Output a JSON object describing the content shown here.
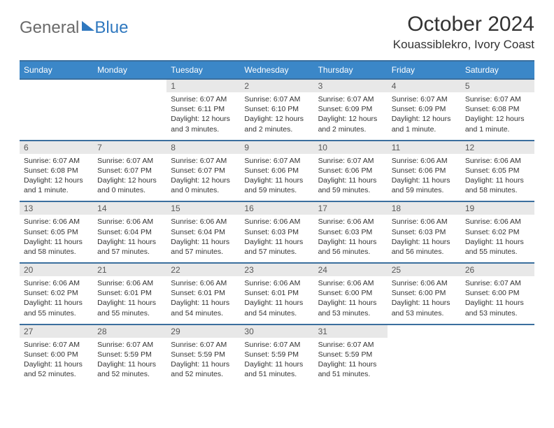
{
  "logo": {
    "general": "General",
    "blue": "Blue"
  },
  "title": "October 2024",
  "location": "Kouassiblekro, Ivory Coast",
  "colors": {
    "header_bg": "#3b87c8",
    "header_border": "#3b6f9e",
    "daynum_bg": "#e8e8e8",
    "text": "#333333",
    "logo_gray": "#6a6a6a",
    "logo_blue": "#2f78bf"
  },
  "dayNames": [
    "Sunday",
    "Monday",
    "Tuesday",
    "Wednesday",
    "Thursday",
    "Friday",
    "Saturday"
  ],
  "weeks": [
    [
      null,
      null,
      {
        "n": "1",
        "sr": "6:07 AM",
        "ss": "6:11 PM",
        "dl": "12 hours and 3 minutes."
      },
      {
        "n": "2",
        "sr": "6:07 AM",
        "ss": "6:10 PM",
        "dl": "12 hours and 2 minutes."
      },
      {
        "n": "3",
        "sr": "6:07 AM",
        "ss": "6:09 PM",
        "dl": "12 hours and 2 minutes."
      },
      {
        "n": "4",
        "sr": "6:07 AM",
        "ss": "6:09 PM",
        "dl": "12 hours and 1 minute."
      },
      {
        "n": "5",
        "sr": "6:07 AM",
        "ss": "6:08 PM",
        "dl": "12 hours and 1 minute."
      }
    ],
    [
      {
        "n": "6",
        "sr": "6:07 AM",
        "ss": "6:08 PM",
        "dl": "12 hours and 1 minute."
      },
      {
        "n": "7",
        "sr": "6:07 AM",
        "ss": "6:07 PM",
        "dl": "12 hours and 0 minutes."
      },
      {
        "n": "8",
        "sr": "6:07 AM",
        "ss": "6:07 PM",
        "dl": "12 hours and 0 minutes."
      },
      {
        "n": "9",
        "sr": "6:07 AM",
        "ss": "6:06 PM",
        "dl": "11 hours and 59 minutes."
      },
      {
        "n": "10",
        "sr": "6:07 AM",
        "ss": "6:06 PM",
        "dl": "11 hours and 59 minutes."
      },
      {
        "n": "11",
        "sr": "6:06 AM",
        "ss": "6:06 PM",
        "dl": "11 hours and 59 minutes."
      },
      {
        "n": "12",
        "sr": "6:06 AM",
        "ss": "6:05 PM",
        "dl": "11 hours and 58 minutes."
      }
    ],
    [
      {
        "n": "13",
        "sr": "6:06 AM",
        "ss": "6:05 PM",
        "dl": "11 hours and 58 minutes."
      },
      {
        "n": "14",
        "sr": "6:06 AM",
        "ss": "6:04 PM",
        "dl": "11 hours and 57 minutes."
      },
      {
        "n": "15",
        "sr": "6:06 AM",
        "ss": "6:04 PM",
        "dl": "11 hours and 57 minutes."
      },
      {
        "n": "16",
        "sr": "6:06 AM",
        "ss": "6:03 PM",
        "dl": "11 hours and 57 minutes."
      },
      {
        "n": "17",
        "sr": "6:06 AM",
        "ss": "6:03 PM",
        "dl": "11 hours and 56 minutes."
      },
      {
        "n": "18",
        "sr": "6:06 AM",
        "ss": "6:03 PM",
        "dl": "11 hours and 56 minutes."
      },
      {
        "n": "19",
        "sr": "6:06 AM",
        "ss": "6:02 PM",
        "dl": "11 hours and 55 minutes."
      }
    ],
    [
      {
        "n": "20",
        "sr": "6:06 AM",
        "ss": "6:02 PM",
        "dl": "11 hours and 55 minutes."
      },
      {
        "n": "21",
        "sr": "6:06 AM",
        "ss": "6:01 PM",
        "dl": "11 hours and 55 minutes."
      },
      {
        "n": "22",
        "sr": "6:06 AM",
        "ss": "6:01 PM",
        "dl": "11 hours and 54 minutes."
      },
      {
        "n": "23",
        "sr": "6:06 AM",
        "ss": "6:01 PM",
        "dl": "11 hours and 54 minutes."
      },
      {
        "n": "24",
        "sr": "6:06 AM",
        "ss": "6:00 PM",
        "dl": "11 hours and 53 minutes."
      },
      {
        "n": "25",
        "sr": "6:06 AM",
        "ss": "6:00 PM",
        "dl": "11 hours and 53 minutes."
      },
      {
        "n": "26",
        "sr": "6:07 AM",
        "ss": "6:00 PM",
        "dl": "11 hours and 53 minutes."
      }
    ],
    [
      {
        "n": "27",
        "sr": "6:07 AM",
        "ss": "6:00 PM",
        "dl": "11 hours and 52 minutes."
      },
      {
        "n": "28",
        "sr": "6:07 AM",
        "ss": "5:59 PM",
        "dl": "11 hours and 52 minutes."
      },
      {
        "n": "29",
        "sr": "6:07 AM",
        "ss": "5:59 PM",
        "dl": "11 hours and 52 minutes."
      },
      {
        "n": "30",
        "sr": "6:07 AM",
        "ss": "5:59 PM",
        "dl": "11 hours and 51 minutes."
      },
      {
        "n": "31",
        "sr": "6:07 AM",
        "ss": "5:59 PM",
        "dl": "11 hours and 51 minutes."
      },
      null,
      null
    ]
  ],
  "labels": {
    "sunrise": "Sunrise:",
    "sunset": "Sunset:",
    "daylight": "Daylight:"
  }
}
